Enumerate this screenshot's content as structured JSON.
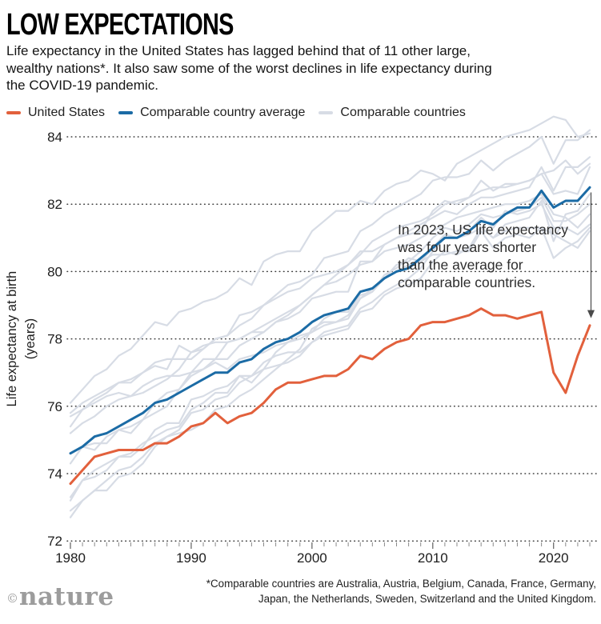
{
  "header": {
    "title": "LOW EXPECTATIONS",
    "subtitle": "Life expectancy in the United States has lagged behind that of 11 other large, wealthy nations*. It also saw some of the worst declines in life expectancy during the COVID-19 pandemic."
  },
  "legend": [
    {
      "label": "United States",
      "color": "#E2603C"
    },
    {
      "label": "Comparable country average",
      "color": "#1B6BA5"
    },
    {
      "label": "Comparable countries",
      "color": "#D7DCE5"
    }
  ],
  "chart_data": {
    "type": "line",
    "title": "LOW EXPECTATIONS",
    "ylabel": "Life expectancy at birth",
    "ylabel2": "(years)",
    "xlabel": "",
    "ylim": [
      72,
      84
    ],
    "xlim": [
      1980,
      2023
    ],
    "yticks": [
      72,
      74,
      76,
      78,
      80,
      82,
      84
    ],
    "xticks": [
      1980,
      1990,
      2000,
      2010,
      2020
    ],
    "grid": "dotted-horizontal",
    "legend_position": "top",
    "colors": {
      "us": "#E2603C",
      "avg": "#1B6BA5",
      "other": "#D7DCE5"
    },
    "x": [
      1980,
      1981,
      1982,
      1983,
      1984,
      1985,
      1986,
      1987,
      1988,
      1989,
      1990,
      1991,
      1992,
      1993,
      1994,
      1995,
      1996,
      1997,
      1998,
      1999,
      2000,
      2001,
      2002,
      2003,
      2004,
      2005,
      2006,
      2007,
      2008,
      2009,
      2010,
      2011,
      2012,
      2013,
      2014,
      2015,
      2016,
      2017,
      2018,
      2019,
      2020,
      2021,
      2022,
      2023
    ],
    "series": [
      {
        "name": "Australia",
        "role": "other",
        "values": [
          74.6,
          74.8,
          74.7,
          75.1,
          75.3,
          75.2,
          75.6,
          75.8,
          76.0,
          76.5,
          77.0,
          77.4,
          77.4,
          77.9,
          78.0,
          78.2,
          78.2,
          78.5,
          78.7,
          79.0,
          79.3,
          79.6,
          79.9,
          80.2,
          80.5,
          80.9,
          81.1,
          81.3,
          81.4,
          81.5,
          81.7,
          82.0,
          82.1,
          82.2,
          82.4,
          82.5,
          82.5,
          82.6,
          82.7,
          82.9,
          83.0,
          83.3,
          82.9,
          83.2
        ]
      },
      {
        "name": "Austria",
        "role": "other",
        "values": [
          72.7,
          73.2,
          73.5,
          73.5,
          73.9,
          74.0,
          74.3,
          74.8,
          75.1,
          75.3,
          75.8,
          75.9,
          76.2,
          76.3,
          76.7,
          76.9,
          77.1,
          77.6,
          77.9,
          78.1,
          78.2,
          78.6,
          78.8,
          78.8,
          79.3,
          79.4,
          79.9,
          80.1,
          80.4,
          80.3,
          80.7,
          81.1,
          81.0,
          81.2,
          81.6,
          81.3,
          81.8,
          81.7,
          81.8,
          82.0,
          81.3,
          81.3,
          81.1,
          81.4
        ]
      },
      {
        "name": "Belgium",
        "role": "other",
        "values": [
          73.3,
          73.8,
          73.9,
          74.1,
          74.5,
          74.5,
          74.8,
          75.3,
          75.5,
          75.5,
          76.2,
          76.3,
          76.5,
          76.6,
          76.9,
          76.9,
          77.3,
          77.5,
          77.6,
          77.6,
          77.9,
          78.1,
          78.2,
          78.3,
          78.8,
          78.9,
          79.3,
          79.5,
          79.6,
          79.8,
          80.3,
          80.6,
          80.5,
          80.7,
          81.3,
          81.0,
          81.4,
          81.5,
          81.6,
          82.1,
          80.9,
          81.7,
          81.8,
          82.3
        ]
      },
      {
        "name": "Canada",
        "role": "other",
        "values": [
          75.2,
          75.5,
          75.7,
          76.0,
          76.2,
          76.3,
          76.4,
          76.6,
          76.8,
          77.1,
          77.6,
          77.8,
          77.9,
          77.9,
          78.0,
          78.2,
          78.4,
          78.6,
          78.8,
          79.0,
          79.3,
          79.6,
          79.7,
          79.9,
          80.2,
          80.3,
          80.6,
          80.7,
          80.8,
          81.0,
          81.2,
          81.4,
          81.6,
          81.7,
          81.8,
          81.9,
          82.0,
          82.0,
          82.1,
          82.3,
          81.7,
          81.6,
          81.3,
          81.7
        ]
      },
      {
        "name": "France",
        "role": "other",
        "values": [
          74.3,
          74.8,
          74.9,
          74.9,
          75.3,
          75.4,
          75.6,
          76.1,
          76.4,
          76.5,
          76.9,
          77.1,
          77.4,
          77.4,
          77.8,
          78.0,
          78.2,
          78.5,
          78.6,
          78.8,
          79.2,
          79.3,
          79.4,
          79.4,
          80.3,
          80.3,
          80.8,
          81.0,
          81.1,
          81.2,
          81.8,
          82.1,
          82.0,
          82.2,
          82.7,
          82.4,
          82.6,
          82.6,
          82.7,
          82.9,
          82.3,
          82.4,
          82.3,
          83.1
        ]
      },
      {
        "name": "Germany",
        "role": "other",
        "values": [
          72.9,
          73.2,
          73.5,
          73.8,
          74.1,
          74.2,
          74.5,
          74.9,
          75.1,
          75.2,
          75.3,
          75.5,
          75.9,
          76.0,
          76.3,
          76.5,
          76.8,
          77.1,
          77.4,
          77.7,
          78.3,
          78.5,
          78.5,
          78.6,
          79.2,
          79.4,
          79.8,
          80.0,
          80.2,
          80.3,
          80.5,
          80.5,
          80.6,
          80.6,
          81.2,
          80.7,
          81.0,
          81.1,
          81.0,
          81.3,
          81.1,
          80.9,
          80.7,
          81.2
        ]
      },
      {
        "name": "Japan",
        "role": "other",
        "values": [
          76.1,
          76.5,
          76.9,
          77.1,
          77.5,
          77.7,
          78.1,
          78.5,
          78.4,
          78.8,
          78.9,
          79.1,
          79.2,
          79.4,
          79.8,
          79.6,
          80.3,
          80.5,
          80.6,
          80.6,
          81.2,
          81.5,
          81.8,
          81.8,
          82.1,
          82.0,
          82.4,
          82.6,
          82.7,
          83.0,
          82.9,
          82.7,
          83.2,
          83.4,
          83.6,
          83.8,
          84.0,
          84.1,
          84.2,
          84.4,
          84.6,
          84.5,
          84.0,
          84.1
        ]
      },
      {
        "name": "Netherlands",
        "role": "other",
        "values": [
          75.7,
          75.9,
          76.1,
          76.3,
          76.4,
          76.3,
          76.6,
          76.8,
          76.9,
          76.9,
          77.0,
          77.1,
          77.3,
          77.1,
          77.4,
          77.5,
          77.6,
          77.8,
          77.9,
          78.0,
          78.2,
          78.4,
          78.5,
          78.7,
          79.2,
          79.5,
          79.8,
          80.2,
          80.3,
          80.6,
          81.0,
          81.3,
          81.2,
          81.4,
          81.7,
          81.6,
          81.7,
          81.8,
          81.9,
          82.2,
          81.5,
          81.5,
          81.7,
          82.0
        ]
      },
      {
        "name": "Sweden",
        "role": "other",
        "values": [
          75.8,
          76.1,
          76.3,
          76.5,
          76.7,
          76.8,
          77.0,
          77.2,
          77.1,
          77.8,
          77.6,
          77.7,
          78.0,
          78.1,
          78.7,
          78.8,
          79.0,
          79.2,
          79.4,
          79.5,
          79.8,
          79.9,
          80.0,
          80.2,
          80.6,
          80.6,
          80.8,
          81.0,
          81.2,
          81.4,
          81.6,
          81.8,
          81.7,
          82.0,
          82.2,
          82.2,
          82.3,
          82.4,
          82.5,
          83.1,
          82.4,
          83.1,
          83.1,
          83.4
        ]
      },
      {
        "name": "Switzerland",
        "role": "other",
        "values": [
          75.4,
          75.9,
          76.2,
          76.4,
          76.7,
          76.7,
          77.0,
          77.3,
          77.4,
          77.4,
          77.4,
          77.7,
          78.0,
          78.1,
          78.4,
          78.6,
          79.0,
          79.3,
          79.6,
          79.7,
          79.9,
          80.4,
          80.5,
          80.6,
          81.2,
          81.4,
          81.7,
          81.9,
          82.1,
          82.3,
          82.7,
          82.8,
          82.8,
          82.9,
          83.3,
          83.0,
          83.3,
          83.5,
          83.7,
          84.0,
          83.2,
          83.9,
          83.9,
          84.2
        ]
      },
      {
        "name": "United Kingdom",
        "role": "other",
        "values": [
          73.2,
          73.8,
          74.1,
          74.3,
          74.5,
          74.6,
          74.9,
          75.1,
          75.3,
          75.4,
          75.9,
          76.1,
          76.4,
          76.4,
          76.9,
          76.7,
          77.1,
          77.2,
          77.3,
          77.5,
          77.9,
          78.2,
          78.3,
          78.4,
          78.9,
          79.1,
          79.4,
          79.6,
          79.8,
          80.1,
          80.6,
          81.0,
          81.0,
          81.1,
          81.3,
          81.0,
          81.2,
          81.3,
          81.3,
          81.3,
          80.4,
          80.7,
          80.9,
          81.3
        ]
      },
      {
        "name": "Comparable country average",
        "role": "avg",
        "values": [
          74.6,
          74.8,
          75.1,
          75.2,
          75.4,
          75.6,
          75.8,
          76.1,
          76.2,
          76.4,
          76.6,
          76.8,
          77.0,
          77.0,
          77.3,
          77.4,
          77.7,
          77.9,
          78.0,
          78.2,
          78.5,
          78.7,
          78.8,
          78.9,
          79.4,
          79.5,
          79.8,
          80.0,
          80.1,
          80.4,
          80.7,
          81.0,
          81.0,
          81.2,
          81.5,
          81.4,
          81.7,
          81.9,
          81.9,
          82.4,
          81.9,
          82.1,
          82.1,
          82.5
        ]
      },
      {
        "name": "United States",
        "role": "us",
        "values": [
          73.7,
          74.1,
          74.5,
          74.6,
          74.7,
          74.7,
          74.7,
          74.9,
          74.9,
          75.1,
          75.4,
          75.5,
          75.8,
          75.5,
          75.7,
          75.8,
          76.1,
          76.5,
          76.7,
          76.7,
          76.8,
          76.9,
          76.9,
          77.1,
          77.5,
          77.4,
          77.7,
          77.9,
          78.0,
          78.4,
          78.5,
          78.5,
          78.6,
          78.7,
          78.9,
          78.7,
          78.7,
          78.6,
          78.7,
          78.8,
          77.0,
          76.4,
          77.5,
          78.4
        ]
      }
    ],
    "annotation": {
      "lines": [
        "In 2023, US life expectancy",
        "was four years shorter",
        "than the average for",
        "comparable countries."
      ],
      "arrow": {
        "year": 2023,
        "from_value": 82.35,
        "to_value": 78.65
      }
    }
  },
  "footnote": {
    "line1": "*Comparable countries are Australia, Austria, Belgium, Canada, France, Germany,",
    "line2": "Japan, the Netherlands, Sweden, Switzerland and the United Kingdom."
  },
  "logo": {
    "symbol": "©",
    "text": "nature"
  }
}
